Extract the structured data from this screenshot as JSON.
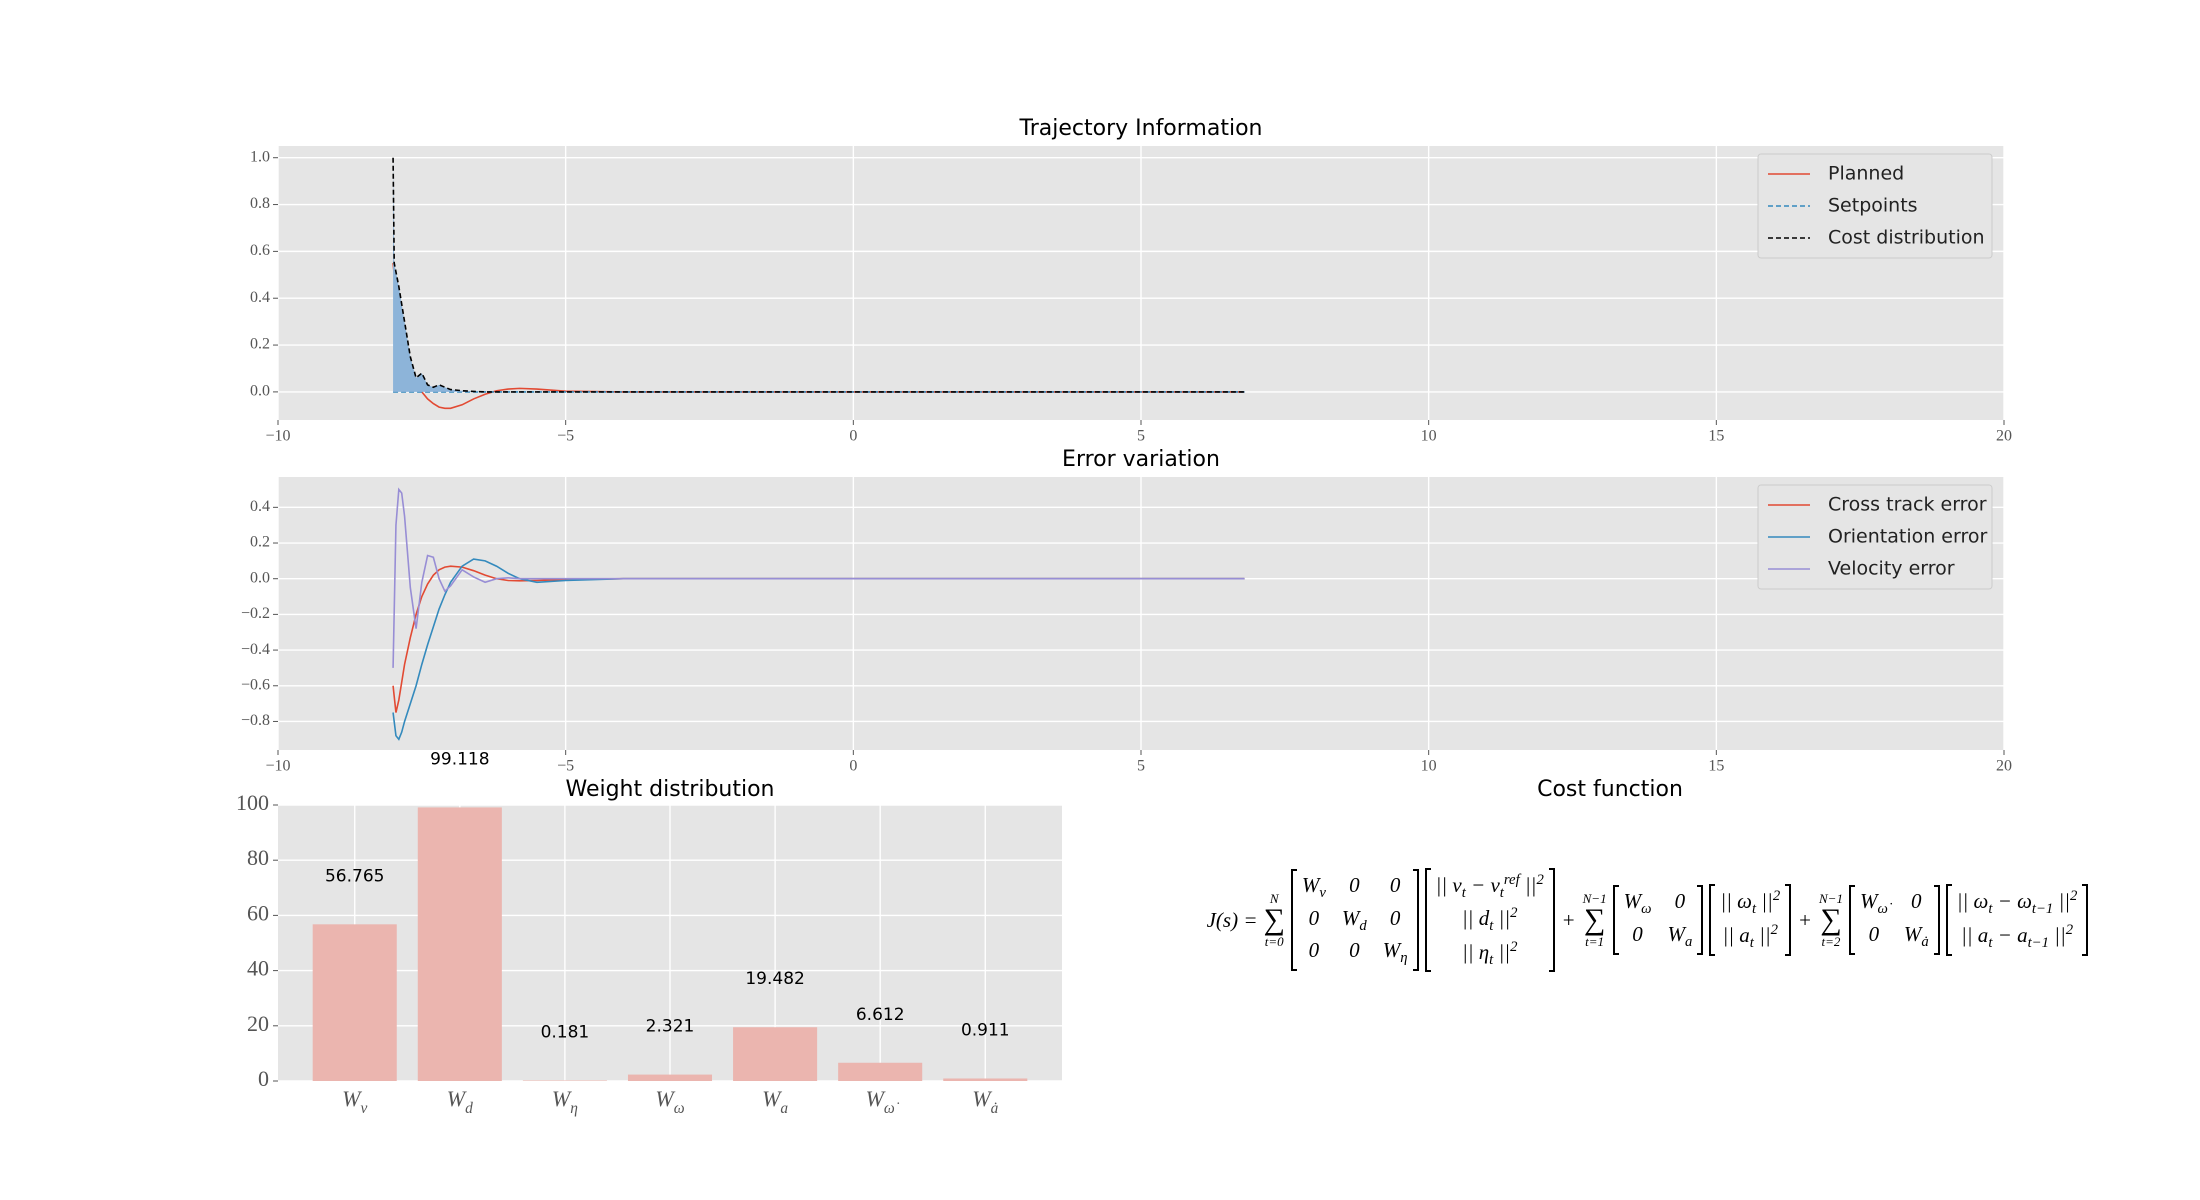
{
  "chart_data": [
    {
      "type": "line",
      "title": "Trajectory Information",
      "x": [
        -8,
        -7.98,
        -7.9,
        -7.8,
        -7.7,
        -7.6,
        -7.5,
        -7.4,
        -7.3,
        -7.2,
        -7.1,
        -7.0,
        -6.8,
        -6.6,
        -6.4,
        -6.2,
        -6.0,
        -5.8,
        -5.5,
        -5.0,
        -4.0,
        -2.0,
        0,
        2,
        4,
        6,
        6.8
      ],
      "series": [
        {
          "name": "Planned",
          "color": "#e24a33",
          "style": "solid",
          "values": [
            0.55,
            0.5,
            0.35,
            0.22,
            0.12,
            0.05,
            0.0,
            -0.03,
            -0.05,
            -0.065,
            -0.07,
            -0.07,
            -0.055,
            -0.03,
            -0.01,
            0.005,
            0.012,
            0.015,
            0.012,
            0.003,
            0,
            0,
            0,
            0,
            0,
            0,
            0
          ]
        },
        {
          "name": "Setpoints",
          "color": "#348abd",
          "style": "dashed",
          "values": [
            0,
            0,
            0,
            0,
            0,
            0,
            0,
            0,
            0,
            0,
            0,
            0,
            0,
            0,
            0,
            0,
            0,
            0,
            0,
            0,
            0,
            0,
            0,
            0,
            0,
            0,
            0
          ]
        },
        {
          "name": "Cost distribution",
          "color": "#000000",
          "style": "dashed",
          "fill": "#8db4d9",
          "values": [
            1.0,
            0.55,
            0.45,
            0.3,
            0.15,
            0.06,
            0.08,
            0.03,
            0.02,
            0.03,
            0.02,
            0.01,
            0.005,
            0.002,
            0,
            0,
            0,
            0,
            0,
            0,
            0,
            0,
            0,
            0,
            0,
            0,
            0
          ]
        }
      ],
      "xlim": [
        -10,
        20
      ],
      "xticks": [
        {
          "value": -10,
          "label": "−10"
        },
        {
          "value": -5,
          "label": "−5"
        },
        0,
        5,
        10,
        15,
        20
      ],
      "ylim": [
        -0.12,
        1.05
      ],
      "yticks": [
        {
          "value": 0,
          "label": "0.0"
        },
        0.2,
        0.4,
        0.6,
        0.8,
        {
          "value": 1,
          "label": "1.0"
        }
      ],
      "grid": true,
      "legend": "upper right"
    },
    {
      "type": "line",
      "title": "Error variation",
      "x": [
        -8,
        -7.95,
        -7.9,
        -7.85,
        -7.8,
        -7.7,
        -7.6,
        -7.5,
        -7.4,
        -7.3,
        -7.2,
        -7.1,
        -7.0,
        -6.8,
        -6.6,
        -6.4,
        -6.2,
        -6.0,
        -5.8,
        -5.5,
        -5.0,
        -4.0,
        -2.0,
        0,
        2,
        4,
        6,
        6.8
      ],
      "series": [
        {
          "name": "Cross track error",
          "color": "#e24a33",
          "style": "solid",
          "values": [
            -0.6,
            -0.75,
            -0.68,
            -0.58,
            -0.48,
            -0.33,
            -0.2,
            -0.1,
            -0.03,
            0.02,
            0.05,
            0.065,
            0.07,
            0.065,
            0.045,
            0.02,
            0.0,
            -0.01,
            -0.012,
            -0.01,
            -0.005,
            0,
            0,
            0,
            0,
            0,
            0,
            0
          ]
        },
        {
          "name": "Orientation error",
          "color": "#348abd",
          "style": "solid",
          "values": [
            -0.75,
            -0.88,
            -0.9,
            -0.86,
            -0.8,
            -0.7,
            -0.6,
            -0.48,
            -0.37,
            -0.27,
            -0.17,
            -0.09,
            -0.02,
            0.07,
            0.11,
            0.1,
            0.07,
            0.03,
            0.0,
            -0.02,
            -0.01,
            0,
            0,
            0,
            0,
            0,
            0,
            0
          ]
        },
        {
          "name": "Velocity error",
          "color": "#988ed5",
          "style": "solid",
          "values": [
            -0.5,
            0.3,
            0.5,
            0.48,
            0.35,
            -0.05,
            -0.28,
            -0.02,
            0.13,
            0.12,
            0.0,
            -0.07,
            -0.04,
            0.05,
            0.01,
            -0.02,
            0.0,
            0.005,
            0,
            0,
            0,
            0,
            0,
            0,
            0,
            0,
            0,
            0
          ]
        }
      ],
      "xlim": [
        -10,
        20
      ],
      "xticks": [
        {
          "value": -10,
          "label": "−10"
        },
        {
          "value": -5,
          "label": "−5"
        },
        0,
        5,
        10,
        15,
        20
      ],
      "ylim": [
        -0.96,
        0.57
      ],
      "yticks": [
        {
          "value": -0.8,
          "label": "−0.8"
        },
        {
          "value": -0.6,
          "label": "−0.6"
        },
        {
          "value": -0.4,
          "label": "−0.4"
        },
        {
          "value": -0.2,
          "label": "−0.2"
        },
        {
          "value": 0,
          "label": "0.0"
        },
        0.2,
        0.4
      ],
      "grid": true,
      "legend": "upper right"
    },
    {
      "type": "bar",
      "title": "Weight distribution",
      "categories": [
        "W_v",
        "W_d",
        "W_η",
        "W_ω",
        "W_a",
        "W_{ω̇}",
        "W_{ȧ}"
      ],
      "values": [
        56.765,
        99.118,
        0.181,
        2.321,
        19.482,
        6.612,
        0.911
      ],
      "color": "#ebb5af",
      "ylim": [
        0,
        100
      ],
      "yticks": [
        0,
        20,
        40,
        60,
        80,
        100
      ],
      "grid": true
    },
    {
      "type": "formula",
      "title": "Cost function",
      "formula": {
        "lhs": "J(s) =",
        "terms": [
          {
            "symbol": "∑",
            "sum_to": "N",
            "sum_from": "t=0",
            "matrix": [
              [
                "W_v",
                "0",
                "0"
              ],
              [
                "0",
                "W_d",
                "0"
              ],
              [
                "0",
                "0",
                "W_η"
              ]
            ],
            "vector": [
              "|| v_t − v_t^{ref} ||^2",
              "|| d_t ||^2",
              "|| η_t ||^2"
            ]
          },
          {
            "op": "+",
            "symbol": "∑",
            "sum_to": "N−1",
            "sum_from": "t=1",
            "matrix": [
              [
                "W_ω",
                "0"
              ],
              [
                "0",
                "W_a"
              ]
            ],
            "vector": [
              "|| ω_t ||^2",
              "|| a_t ||^2"
            ]
          },
          {
            "op": "+",
            "symbol": "∑",
            "sum_to": "N−1",
            "sum_from": "t=2",
            "matrix": [
              [
                "W_{ω̇}",
                "0"
              ],
              [
                "0",
                "W_{ȧ}"
              ]
            ],
            "vector": [
              "|| ω_t − ω_{t−1} ||^2",
              "|| a_t − a_{t−1} ||^2"
            ]
          }
        ]
      }
    }
  ]
}
